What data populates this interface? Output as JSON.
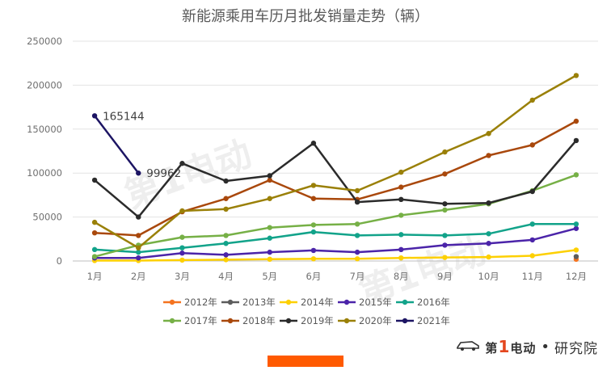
{
  "chart_data": {
    "type": "line",
    "title": "新能源乘用车历月批发销量走势（辆）",
    "categories": [
      "1月",
      "2月",
      "3月",
      "4月",
      "5月",
      "6月",
      "7月",
      "8月",
      "9月",
      "10月",
      "11月",
      "12月"
    ],
    "ylim": [
      0,
      250000
    ],
    "yticks": [
      "0",
      "50000",
      "100000",
      "150000",
      "200000",
      "250000"
    ],
    "grid": true,
    "legend_position": "bottom",
    "series": [
      {
        "name": "2012年",
        "color": "#f4731f",
        "values": [
          null,
          null,
          null,
          null,
          null,
          null,
          null,
          null,
          null,
          null,
          null,
          2000
        ]
      },
      {
        "name": "2013年",
        "color": "#5c5c5c",
        "values": [
          null,
          null,
          null,
          null,
          null,
          null,
          null,
          null,
          null,
          null,
          null,
          5000
        ]
      },
      {
        "name": "2014年",
        "color": "#fdd002",
        "values": [
          500,
          500,
          1000,
          1500,
          2000,
          2500,
          2500,
          3500,
          4000,
          4500,
          6000,
          12500
        ]
      },
      {
        "name": "2015年",
        "color": "#4b24a9",
        "values": [
          3500,
          3500,
          9000,
          7000,
          10000,
          12000,
          10000,
          13000,
          18000,
          20000,
          24000,
          37000
        ]
      },
      {
        "name": "2016年",
        "color": "#12a38a",
        "values": [
          13000,
          10000,
          15000,
          20000,
          26000,
          33000,
          29000,
          30000,
          29000,
          31000,
          42000,
          42000
        ]
      },
      {
        "name": "2017年",
        "color": "#76b046",
        "values": [
          5000,
          18000,
          27000,
          29000,
          38000,
          41000,
          42000,
          52000,
          58000,
          65000,
          80000,
          98000
        ]
      },
      {
        "name": "2018年",
        "color": "#a9480c",
        "values": [
          32000,
          29000,
          56000,
          71000,
          92000,
          71000,
          70000,
          84000,
          99000,
          120000,
          132000,
          159000
        ]
      },
      {
        "name": "2019年",
        "color": "#2b2b2b",
        "values": [
          92000,
          50000,
          111000,
          91000,
          97000,
          134000,
          67000,
          70000,
          65000,
          66000,
          79000,
          137000
        ]
      },
      {
        "name": "2020年",
        "color": "#9a8008",
        "values": [
          44000,
          15000,
          57000,
          59000,
          71000,
          86000,
          80000,
          101000,
          124000,
          145000,
          183000,
          211000
        ]
      },
      {
        "name": "2021年",
        "color": "#1c1463",
        "values": [
          165144,
          99962,
          null,
          null,
          null,
          null,
          null,
          null,
          null,
          null,
          null,
          null
        ]
      }
    ],
    "data_labels": [
      {
        "series": "2021年",
        "index": 0,
        "text": "165144"
      },
      {
        "series": "2021年",
        "index": 1,
        "text": "99962"
      }
    ]
  },
  "brand": {
    "logo_text_a": "第",
    "logo_text_one": "1",
    "logo_text_b": "电动",
    "separator": "•",
    "suffix": "研究院"
  }
}
